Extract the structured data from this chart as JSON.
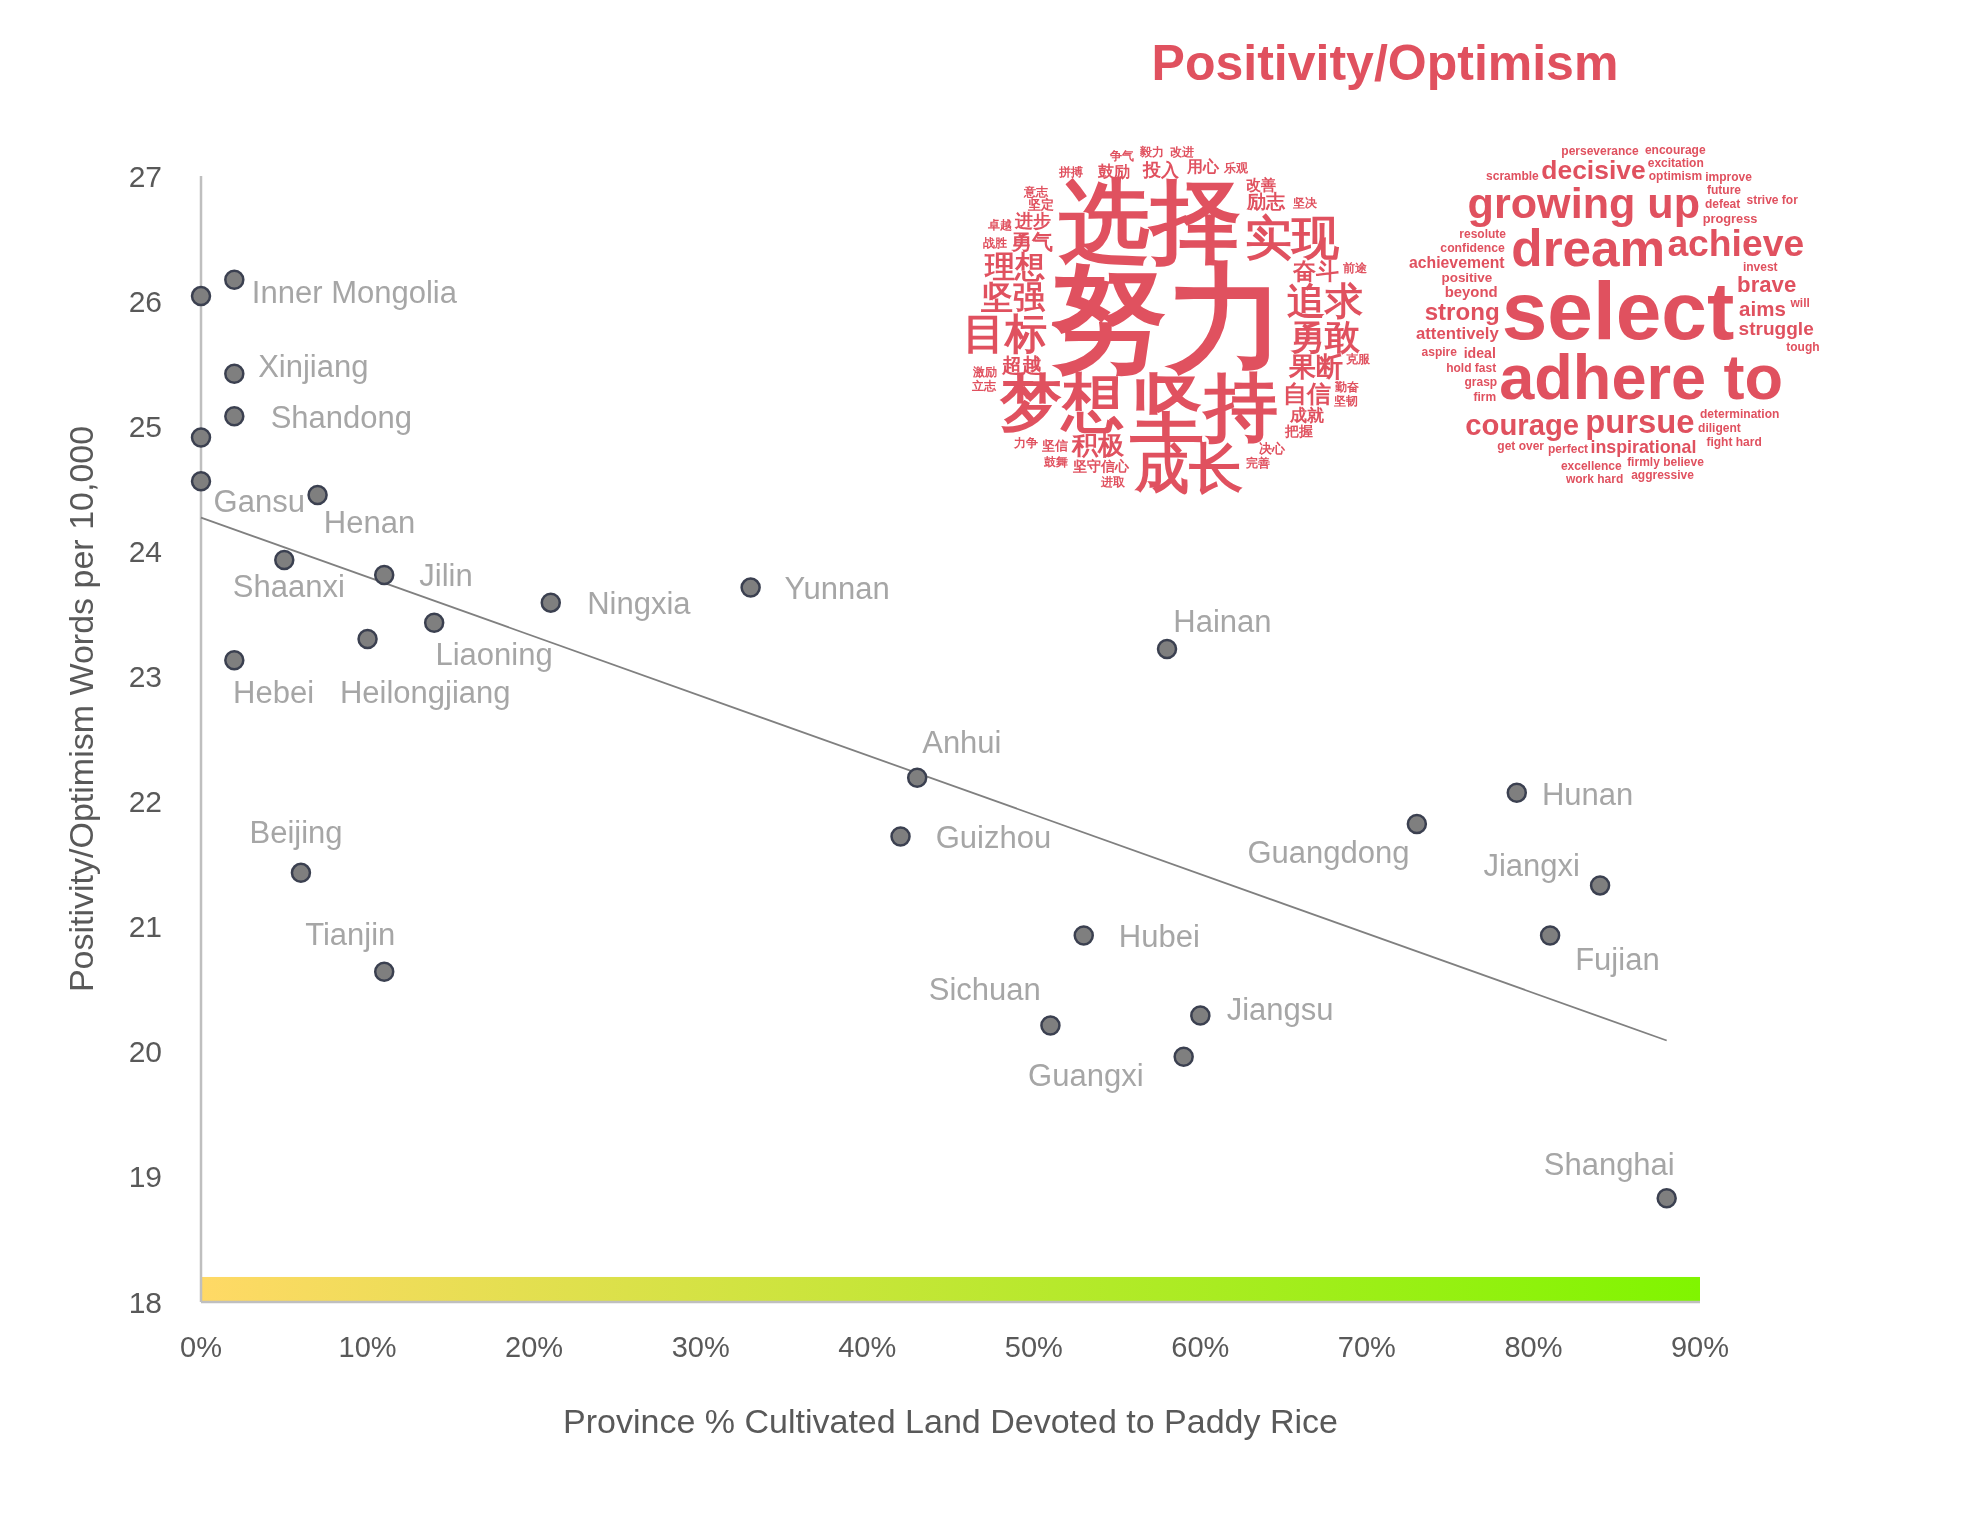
{
  "chart_data": [
    {
      "type": "scatter",
      "xlabel": "Province % Cultivated Land Devoted to Paddy Rice",
      "ylabel": "Positivity/Optimism Words per 10,000",
      "xlim": [
        0,
        90
      ],
      "xticks": [
        {
          "value": 0,
          "label": "0%"
        },
        {
          "value": 10,
          "label": "10%"
        },
        {
          "value": 20,
          "label": "20%"
        },
        {
          "value": 30,
          "label": "30%"
        },
        {
          "value": 40,
          "label": "40%"
        },
        {
          "value": 50,
          "label": "50%"
        },
        {
          "value": 60,
          "label": "60%"
        },
        {
          "value": 70,
          "label": "70%"
        },
        {
          "value": 80,
          "label": "80%"
        },
        {
          "value": 90,
          "label": "90%"
        }
      ],
      "ylim": [
        18,
        27
      ],
      "yticks": [
        18,
        19,
        20,
        21,
        22,
        23,
        24,
        25,
        26,
        27
      ],
      "bands": [
        {
          "axis": "y",
          "from": 18,
          "to": 18.2
        }
      ],
      "series": [
        {
          "type": "scatter",
          "marker": "circle",
          "color": "#7f7f7f",
          "x": [
            0,
            2,
            2,
            2,
            0,
            0,
            7,
            5,
            11,
            14,
            10,
            2,
            21,
            33,
            58,
            43,
            42,
            6,
            11,
            53,
            51,
            60,
            59,
            73,
            79,
            84,
            81,
            88
          ],
          "values": [
            26.04,
            26.17,
            25.42,
            25.08,
            24.91,
            24.56,
            24.45,
            23.93,
            23.81,
            23.43,
            23.3,
            23.13,
            23.59,
            23.71,
            23.22,
            22.19,
            21.72,
            21.43,
            20.64,
            20.93,
            20.21,
            20.29,
            19.96,
            21.82,
            22.07,
            21.33,
            20.93,
            18.83
          ],
          "value_labels": [
            null,
            "Inner Mongolia",
            "Xinjiang",
            "Shandong",
            null,
            "Gansu",
            "Henan",
            "Shaanxi",
            "Jilin",
            "Liaoning",
            "Heilongjiang",
            "Hebei",
            "Ningxia",
            "Yunnan",
            "Hainan",
            "Anhui",
            "Guizhou",
            "Beijing",
            "Tianjin",
            "Hubei",
            "Sichuan",
            "Jiangsu",
            "Guangxi",
            "Guangdong",
            "Hunan",
            "Jiangxi",
            "Fujian",
            "Shanghai"
          ]
        },
        {
          "type": "line",
          "color": "#808080",
          "x": [
            0,
            88
          ],
          "values": [
            24.27,
            20.09
          ]
        }
      ]
    },
    {
      "type": "other",
      "title": "Positivity/Optimism",
      "annotations": [
        "努力",
        "选择",
        "坚持",
        "梦想",
        "成长",
        "实现",
        "目标",
        "追求",
        "勇敢",
        "坚强",
        "理想",
        "果断",
        "积极",
        "自信",
        "奋斗",
        "勇气",
        "超越",
        "励志",
        "进步",
        "投入",
        "成就",
        "鼓励",
        "用心",
        "改善",
        "坚守信心",
        "把握",
        "坚定",
        "决心",
        "坚信",
        "激励",
        "乐观",
        "战胜",
        "坚决",
        "前途",
        "克服",
        "勤奋",
        "立志",
        "完善",
        "意志",
        "卓越",
        "拼搏",
        "争气",
        "毅力",
        "改进",
        "坚韧",
        "进取",
        "鼓舞",
        "力争"
      ]
    },
    {
      "type": "other",
      "annotations": [
        "select",
        "adhere to",
        "dream",
        "growing up",
        "achieve",
        "pursue",
        "courage",
        "decisive",
        "strong",
        "brave",
        "aims",
        "struggle",
        "inspirational",
        "attentively",
        "achievement",
        "beyond",
        "ideal",
        "positive",
        "progress",
        "confidence",
        "invest",
        "hold fast",
        "determination",
        "resolute",
        "optimism",
        "defeat",
        "grasp",
        "diligent",
        "firm",
        "perfect",
        "excitation",
        "firmly believe",
        "future",
        "excellence",
        "perseverance",
        "fight hard",
        "aspire",
        "will",
        "get over",
        "tough",
        "scramble",
        "improve",
        "encourage",
        "aggressive",
        "strive for",
        "work hard"
      ]
    }
  ]
}
